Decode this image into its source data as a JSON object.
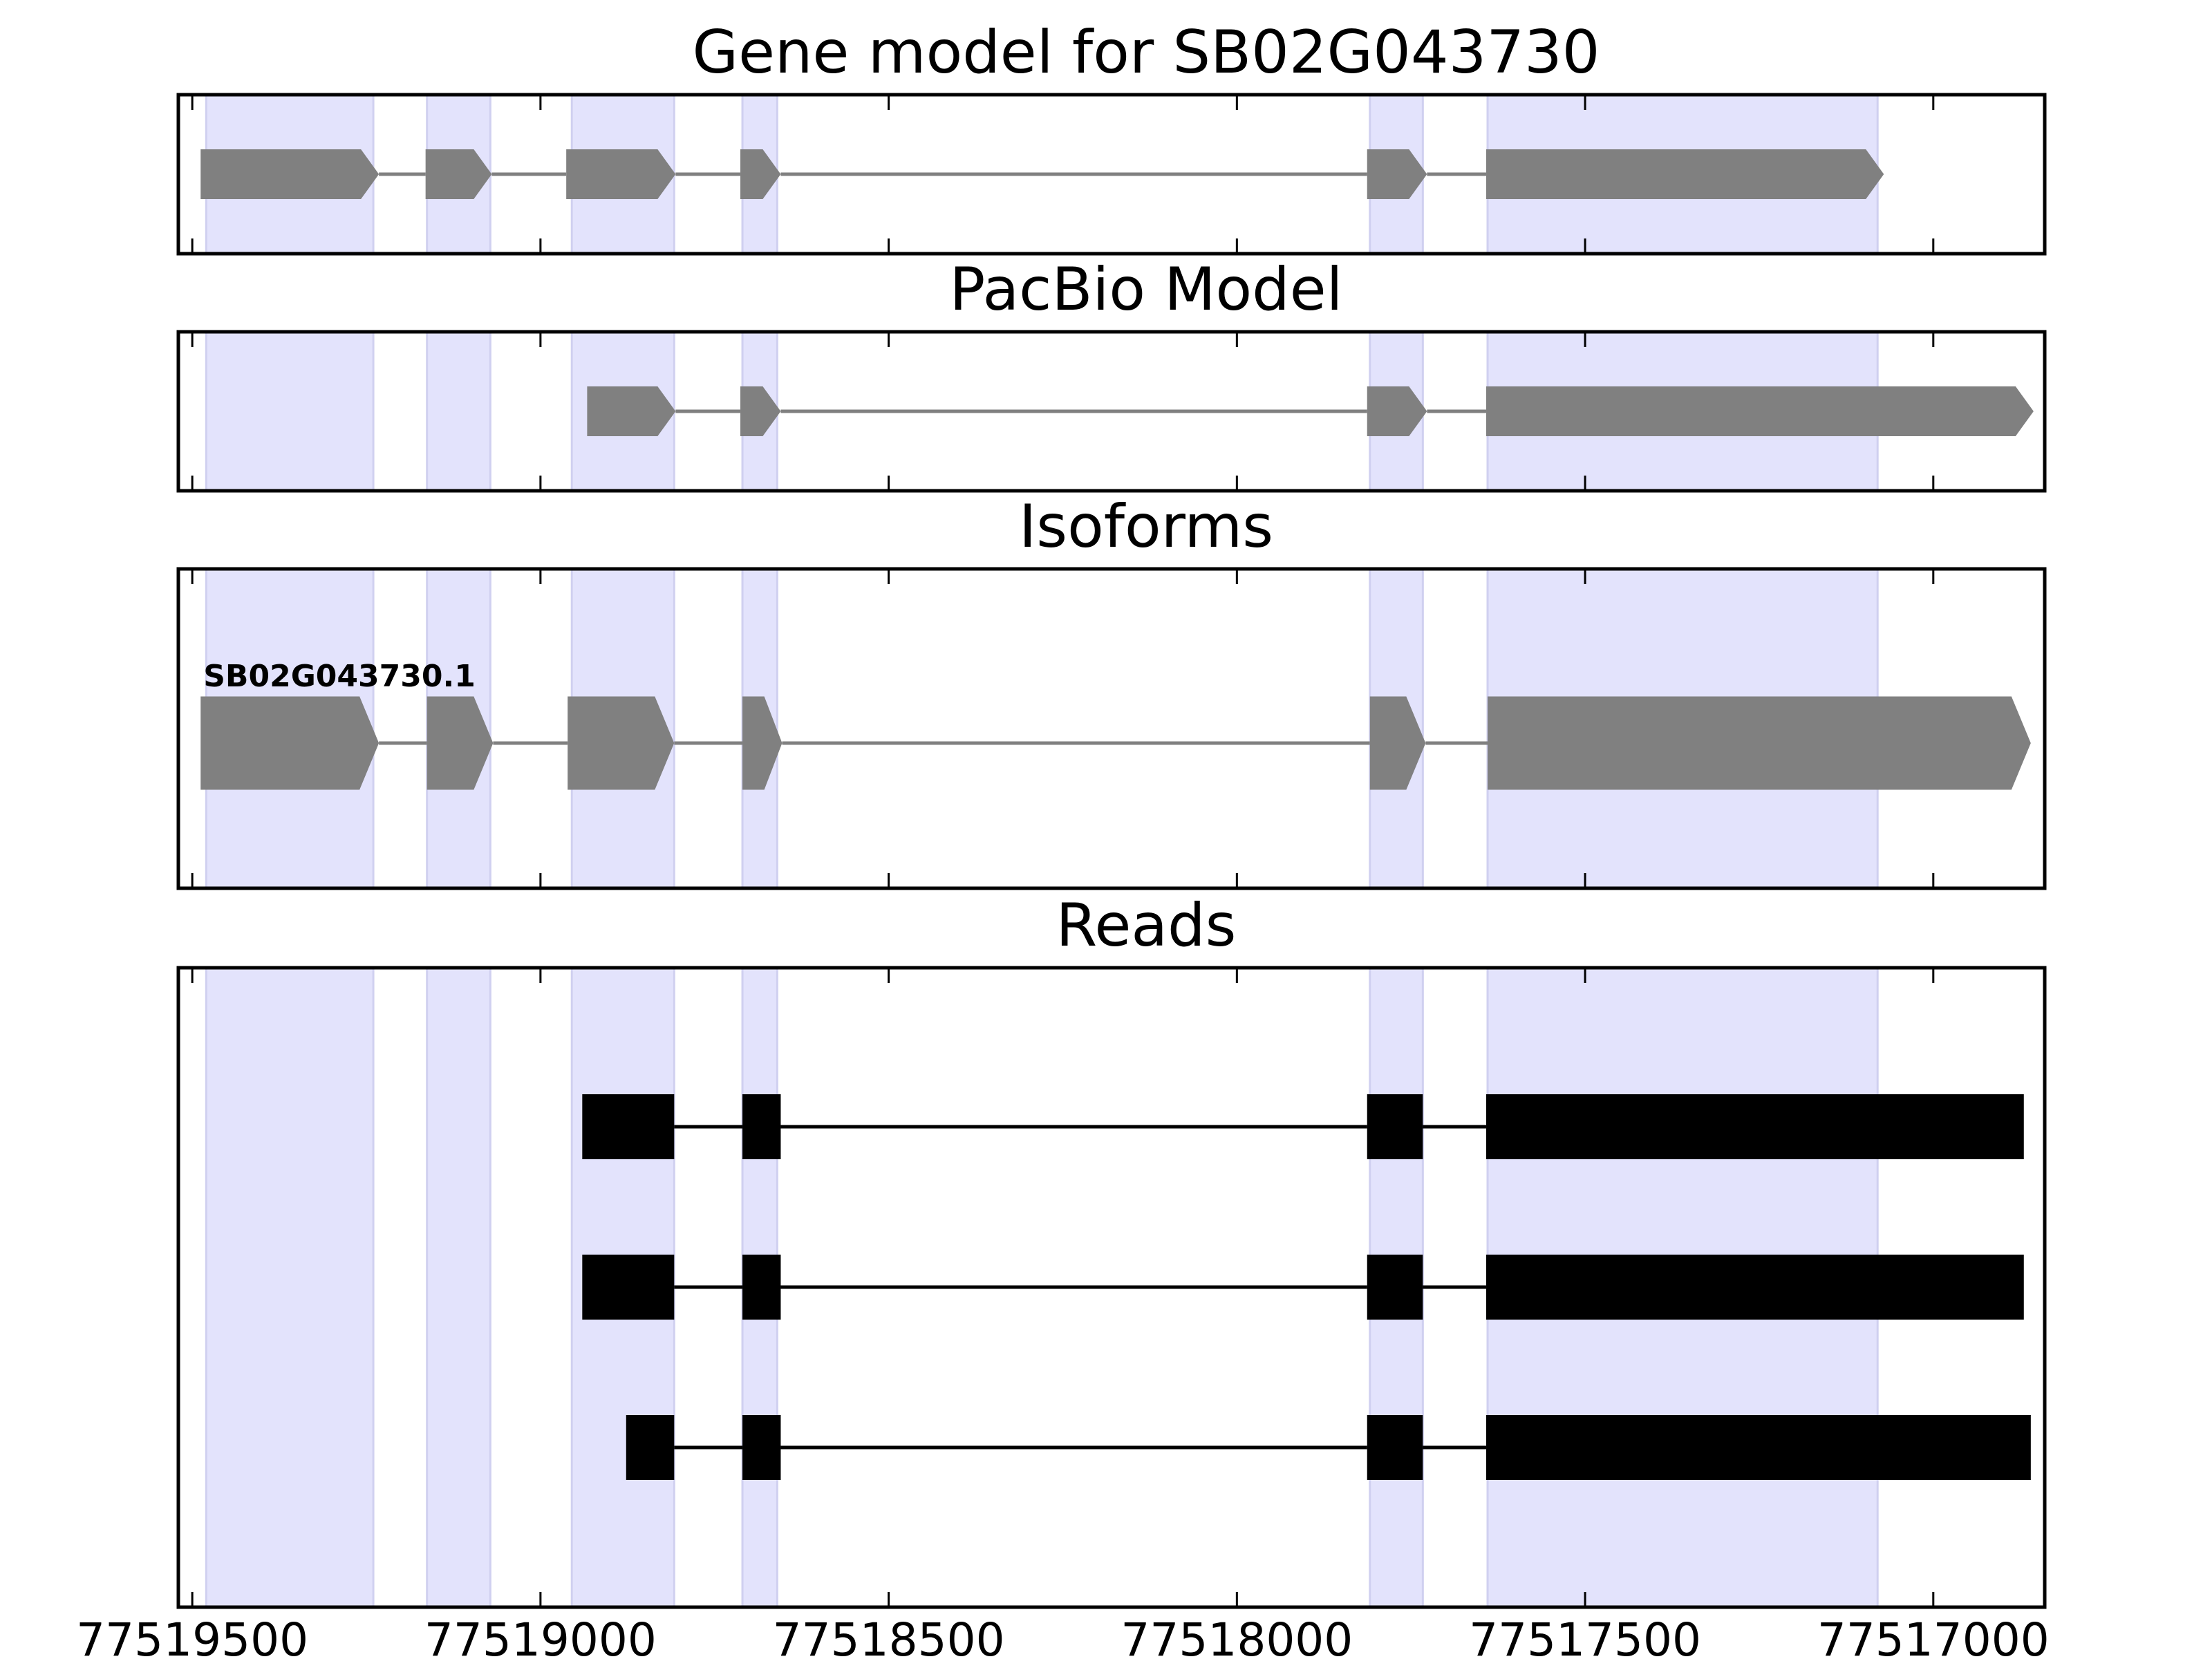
{
  "chart_data": {
    "type": "gene-model-tracks",
    "x_axis": {
      "reversed": true,
      "range": [
        77519520,
        77516840
      ],
      "ticks": [
        77519500,
        77519000,
        77518500,
        77518000,
        77517500,
        77517000
      ],
      "tick_labels": [
        "77519500",
        "77519000",
        "77518500",
        "77518000",
        "77517500",
        "77517000"
      ]
    },
    "colors": {
      "exon_highlight": "#e3e3fc",
      "feature": "#808080",
      "read": "#000000"
    },
    "exon_regions": [
      [
        77519480,
        77519240
      ],
      [
        77519163,
        77519072
      ],
      [
        77518955,
        77518808
      ],
      [
        77518710,
        77518660
      ],
      [
        77517809,
        77517733
      ],
      [
        77517640,
        77517080
      ]
    ],
    "panels": [
      {
        "title": "Gene model for SB02G043730",
        "tracks": [
          {
            "strand": "-",
            "exons": [
              [
                77519488,
                77519232
              ],
              [
                77519165,
                77519070
              ],
              [
                77518963,
                77518806
              ],
              [
                77518713,
                77518655
              ],
              [
                77517813,
                77517727
              ],
              [
                77517642,
                77517071
              ]
            ]
          }
        ]
      },
      {
        "title": "PacBio Model",
        "tracks": [
          {
            "strand": "-",
            "exons": [
              [
                77518933,
                77518806
              ],
              [
                77518713,
                77518655
              ],
              [
                77517813,
                77517727
              ],
              [
                77517642,
                77516856
              ]
            ]
          }
        ]
      },
      {
        "title": "Isoforms",
        "tracks": [
          {
            "label": "SB02G043730.1",
            "strand": "-",
            "exons": [
              [
                77519488,
                77519232
              ],
              [
                77519163,
                77519068
              ],
              [
                77518961,
                77518808
              ],
              [
                77518710,
                77518653
              ],
              [
                77517809,
                77517729
              ],
              [
                77517640,
                77516860
              ]
            ]
          }
        ]
      },
      {
        "title": "Reads",
        "tracks": [
          {
            "exons": [
              [
                77518940,
                77518808
              ],
              [
                77518710,
                77518655
              ],
              [
                77517813,
                77517733
              ],
              [
                77517642,
                77516870
              ]
            ]
          },
          {
            "exons": [
              [
                77518940,
                77518808
              ],
              [
                77518710,
                77518655
              ],
              [
                77517813,
                77517733
              ],
              [
                77517642,
                77516870
              ]
            ]
          },
          {
            "exons": [
              [
                77518877,
                77518808
              ],
              [
                77518710,
                77518655
              ],
              [
                77517813,
                77517733
              ],
              [
                77517642,
                77516860
              ]
            ]
          }
        ]
      }
    ]
  }
}
